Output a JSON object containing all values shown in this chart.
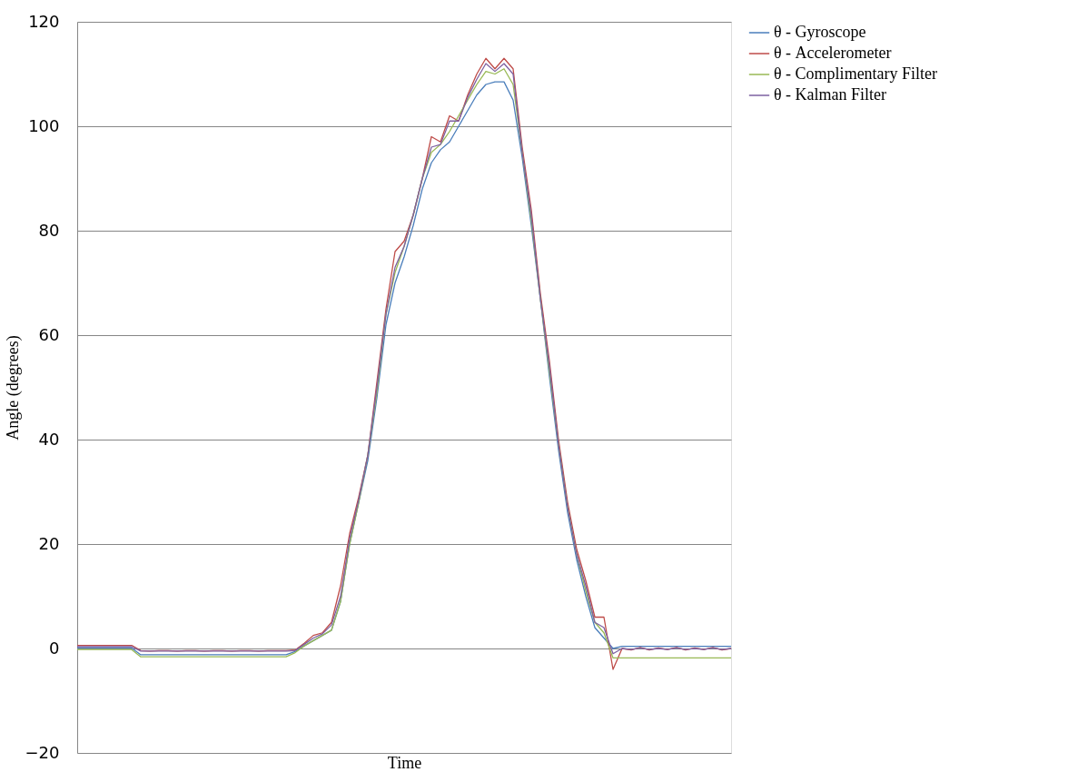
{
  "chart_data": {
    "type": "line",
    "xlabel": "Time",
    "ylabel": "Angle (degrees)",
    "categories": [
      null,
      null,
      null,
      null,
      null,
      null,
      null,
      null,
      null,
      null,
      null,
      null,
      null,
      null,
      null,
      null,
      null,
      null,
      null,
      null,
      null,
      null,
      null,
      null,
      null,
      null,
      null,
      null,
      null,
      null,
      null,
      null,
      null,
      null,
      null,
      null,
      null,
      null,
      null,
      null,
      null,
      null,
      null,
      null,
      null,
      null,
      null,
      null,
      null,
      null,
      null,
      null,
      null,
      null,
      null,
      null,
      null,
      null,
      null,
      null,
      null,
      null,
      null,
      null,
      null,
      null,
      null,
      null,
      null,
      null,
      null,
      null,
      null
    ],
    "ylim": [
      -20,
      120
    ],
    "yticks": [
      -20,
      0,
      20,
      40,
      60,
      80,
      100,
      120
    ],
    "grid": "y",
    "legend": "right",
    "tick_labels": "y",
    "marker": "none",
    "line_style": "solid",
    "series": [
      {
        "name": "θ - Gyroscope",
        "color": "#4a7ebb",
        "values": [
          0.1,
          0.1,
          0.1,
          0.1,
          0.1,
          0.1,
          0.1,
          -1.2,
          -1.2,
          -1.2,
          -1.2,
          -1.2,
          -1.2,
          -1.2,
          -1.2,
          -1.2,
          -1.2,
          -1.2,
          -1.2,
          -1.2,
          -1.2,
          -1.2,
          -1.2,
          -1.2,
          -0.6,
          0.5,
          1.5,
          2.5,
          3.5,
          9,
          20,
          28,
          36,
          48,
          62,
          70,
          75,
          81,
          88,
          93,
          95.5,
          97,
          100,
          103,
          106,
          108,
          108.5,
          108.5,
          105,
          94,
          81,
          67,
          52,
          38,
          26,
          17,
          10,
          4,
          2,
          0,
          0.4,
          0.4,
          0.4,
          0.4,
          0.4,
          0.4,
          0.4,
          0.4,
          0.4,
          0.4,
          0.4,
          0.4,
          0.4
        ]
      },
      {
        "name": "θ - Accelerometer",
        "color": "#be4b48",
        "values": [
          0.6,
          0.6,
          0.6,
          0.6,
          0.6,
          0.6,
          0.6,
          -0.4,
          -0.5,
          -0.4,
          -0.4,
          -0.5,
          -0.4,
          -0.4,
          -0.5,
          -0.4,
          -0.4,
          -0.5,
          -0.4,
          -0.4,
          -0.5,
          -0.4,
          -0.4,
          -0.4,
          -0.3,
          1,
          2.5,
          3,
          5,
          12,
          22,
          29,
          37,
          51,
          65,
          76,
          78,
          83,
          90,
          98,
          97,
          102,
          101,
          106,
          110,
          113,
          111,
          113,
          111,
          96,
          84,
          68,
          55,
          40,
          28,
          19,
          13,
          6,
          6,
          -4,
          0,
          -0.3,
          0.2,
          -0.3,
          0.1,
          -0.2,
          0.2,
          -0.3,
          0.1,
          -0.2,
          0.2,
          -0.3,
          0
        ]
      },
      {
        "name": "θ - Complimentary Filter",
        "color": "#98b954",
        "values": [
          -0.2,
          -0.2,
          -0.2,
          -0.2,
          -0.2,
          -0.2,
          -0.2,
          -1.6,
          -1.6,
          -1.6,
          -1.6,
          -1.6,
          -1.6,
          -1.6,
          -1.6,
          -1.6,
          -1.6,
          -1.6,
          -1.6,
          -1.6,
          -1.6,
          -1.6,
          -1.6,
          -1.6,
          -0.8,
          0.5,
          1.5,
          2.5,
          3.5,
          9,
          20,
          28,
          37,
          49,
          64,
          72,
          77,
          83,
          90,
          95,
          96.5,
          99,
          102,
          105,
          108,
          110.5,
          110,
          111,
          108,
          95,
          82,
          67,
          53,
          39,
          27,
          18,
          11,
          5,
          3,
          -1.8,
          -1.8,
          -1.8,
          -1.8,
          -1.8,
          -1.8,
          -1.8,
          -1.8,
          -1.8,
          -1.8,
          -1.8,
          -1.8,
          -1.8,
          -1.8
        ]
      },
      {
        "name": "θ - Kalman Filter",
        "color": "#7d60a0",
        "values": [
          0.35,
          0.35,
          0.35,
          0.35,
          0.35,
          0.35,
          0.35,
          -0.5,
          -0.5,
          -0.5,
          -0.5,
          -0.5,
          -0.5,
          -0.5,
          -0.5,
          -0.5,
          -0.5,
          -0.5,
          -0.5,
          -0.5,
          -0.5,
          -0.5,
          -0.5,
          -0.5,
          -0.4,
          0.8,
          2,
          2.8,
          4.5,
          10,
          21,
          28.5,
          37,
          50,
          64,
          73,
          77,
          83,
          90,
          96,
          96.5,
          101,
          101,
          105.5,
          109,
          112,
          110.5,
          112,
          110,
          95,
          83,
          67,
          54,
          39,
          27,
          18,
          12,
          5,
          4,
          -1,
          0,
          -0.2,
          0.1,
          -0.2,
          0,
          -0.2,
          0.1,
          -0.2,
          0,
          -0.2,
          0.1,
          -0.2,
          0
        ]
      }
    ]
  }
}
